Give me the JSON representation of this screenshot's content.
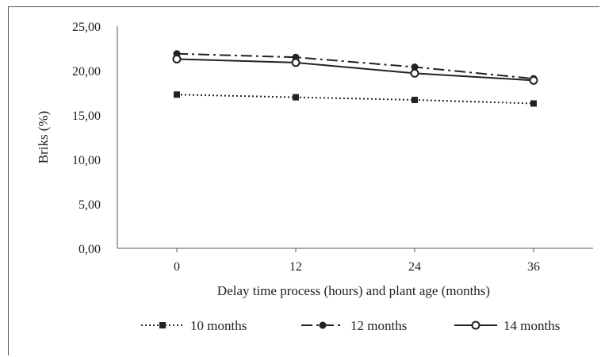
{
  "chart_data": {
    "type": "line",
    "title": "",
    "xlabel": "Delay time process (hours) and plant age (months)",
    "ylabel": "Briks (%)",
    "categories": [
      "0",
      "12",
      "24",
      "36"
    ],
    "y_ticks": [
      "0,00",
      "5,00",
      "10,00",
      "15,00",
      "20,00",
      "25,00"
    ],
    "ylim": [
      0,
      25
    ],
    "grid": false,
    "legend_position": "bottom",
    "series": [
      {
        "name": "10 months",
        "values": [
          17.3,
          17.0,
          16.7,
          16.3
        ],
        "line_style": "dotted",
        "marker": "filled-square",
        "color": "#222222"
      },
      {
        "name": "12 months",
        "values": [
          21.9,
          21.5,
          20.4,
          19.1
        ],
        "line_style": "dash-dot",
        "marker": "filled-circle",
        "color": "#222222"
      },
      {
        "name": "14 months",
        "values": [
          21.3,
          20.9,
          19.7,
          18.9
        ],
        "line_style": "solid",
        "marker": "open-circle",
        "color": "#222222"
      }
    ]
  }
}
